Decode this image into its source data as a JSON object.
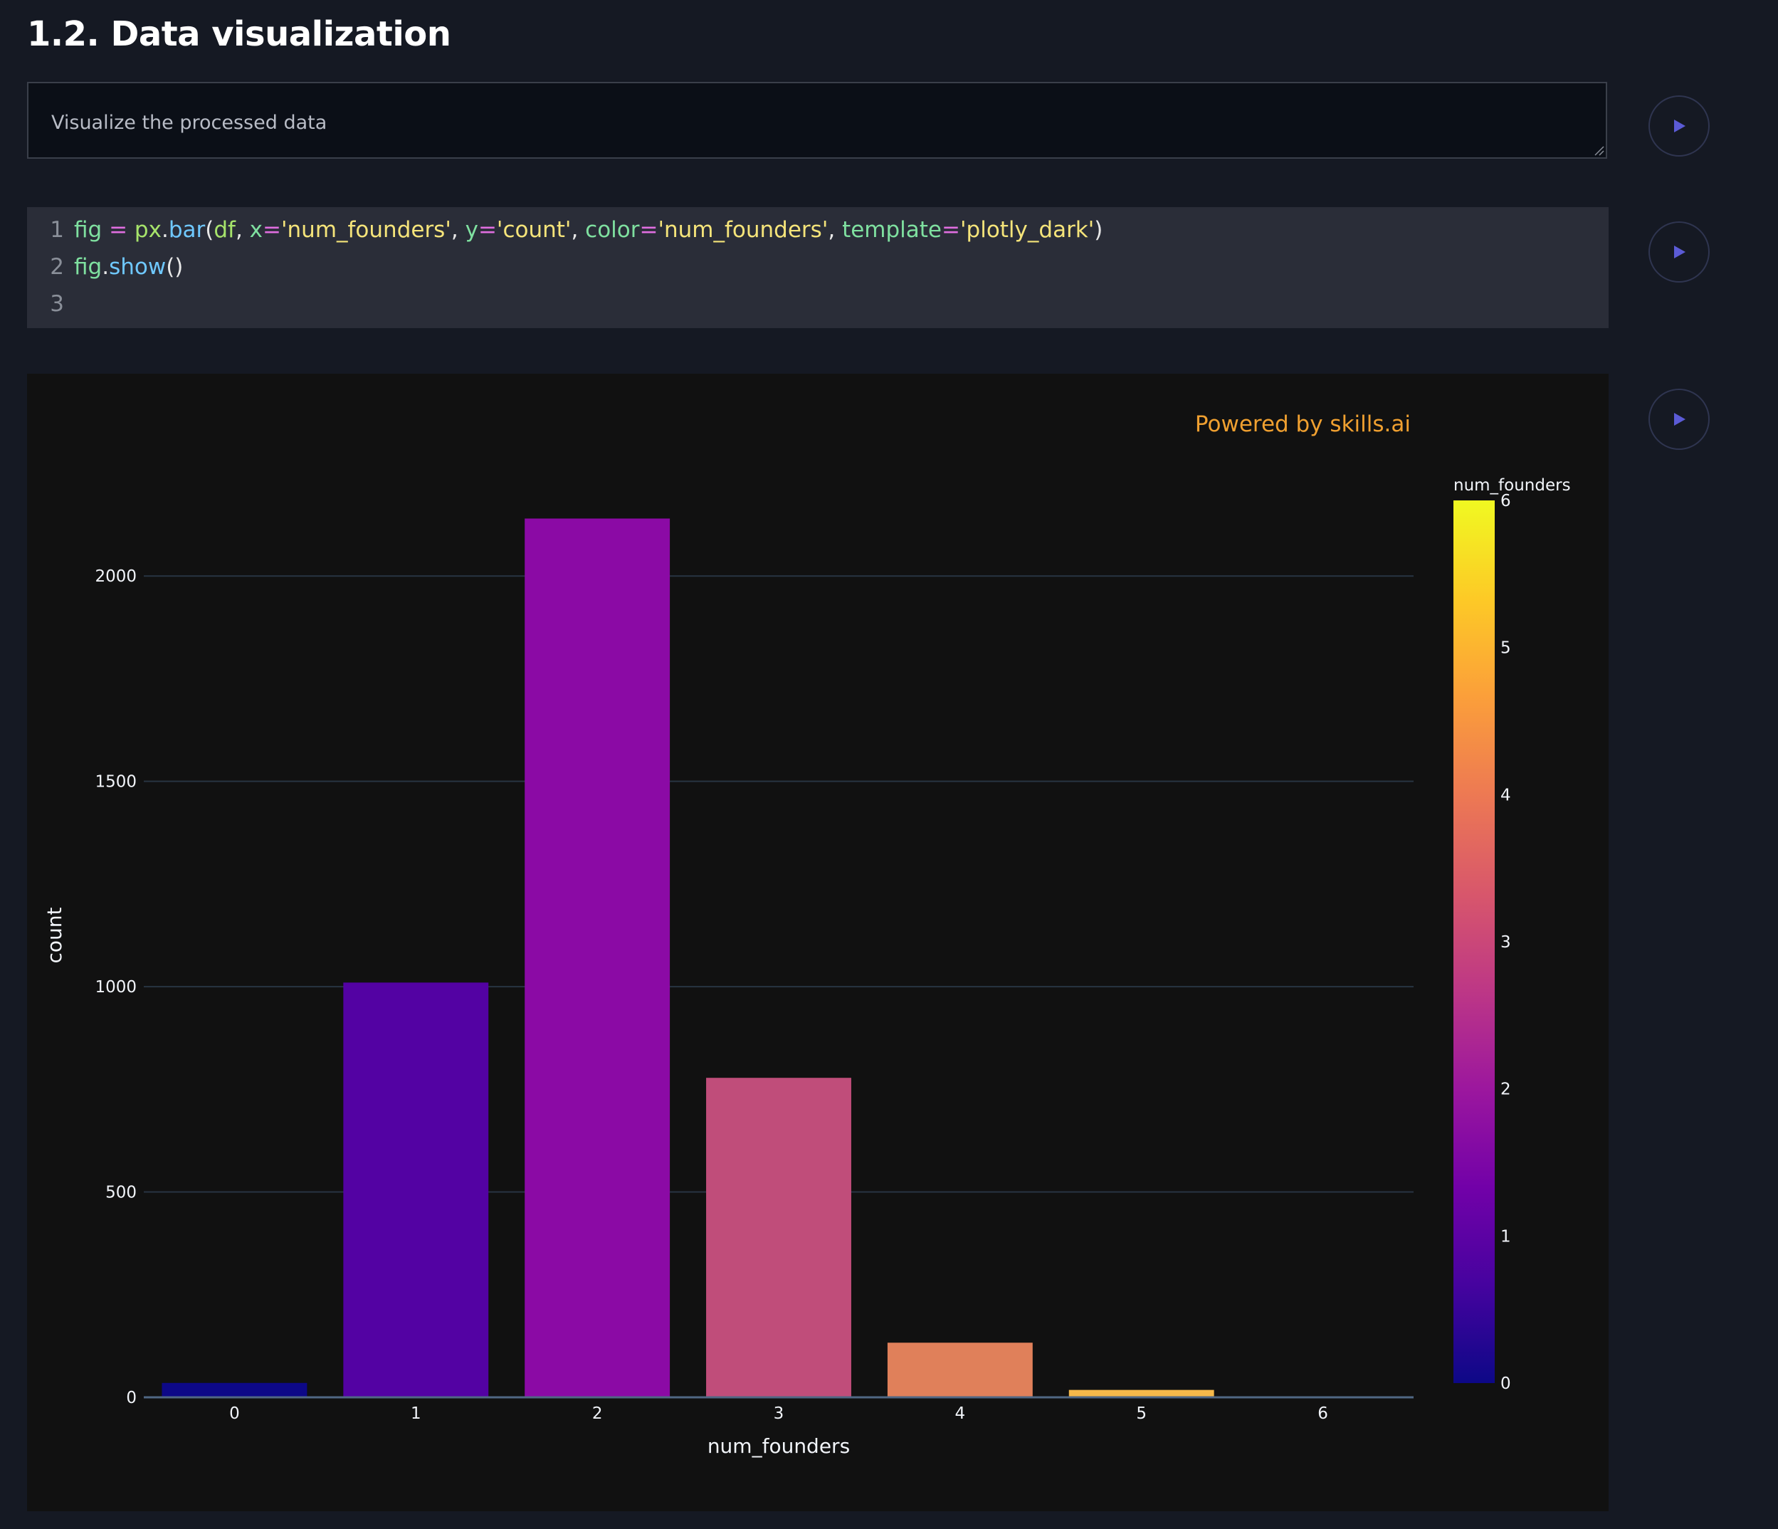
{
  "section": {
    "title": "1.2. Data visualization"
  },
  "prompt": {
    "text": "Visualize the processed data"
  },
  "code": {
    "line_numbers": [
      "1",
      "2",
      "3"
    ]
  },
  "output": {
    "watermark": "Powered by skills.ai"
  },
  "icons": {
    "run": "play-icon"
  },
  "colors": {
    "background": "#151923",
    "accent_play": "#5b5bd6",
    "chart_bg": "#111111",
    "watermark": "#f0a030"
  },
  "chart_data": {
    "type": "bar",
    "categories": [
      "0",
      "1",
      "2",
      "3",
      "4",
      "5",
      "6"
    ],
    "values": [
      35,
      1010,
      2140,
      778,
      133,
      18,
      2
    ],
    "xlabel": "num_founders",
    "ylabel": "count",
    "ylim": [
      0,
      2250
    ],
    "yticks": [
      "0",
      "500",
      "1000",
      "1500",
      "2000"
    ],
    "colorbar": {
      "title": "num_founders",
      "range": [
        0,
        6
      ],
      "ticks": [
        "0",
        "1",
        "2",
        "3",
        "4",
        "5",
        "6"
      ],
      "colorscale": [
        "#0d0887",
        "#46039f",
        "#7201a8",
        "#9c179e",
        "#bd3786",
        "#d8576b",
        "#ed7953",
        "#fb9f3a",
        "#fdca26",
        "#f0f921"
      ]
    },
    "bar_colors": [
      "#0d0887",
      "#5302a3",
      "#8b0aa5",
      "#c04d7a",
      "#e0805a",
      "#f5b84a",
      "#f0f921"
    ],
    "grid": true,
    "template": "plotly_dark"
  }
}
